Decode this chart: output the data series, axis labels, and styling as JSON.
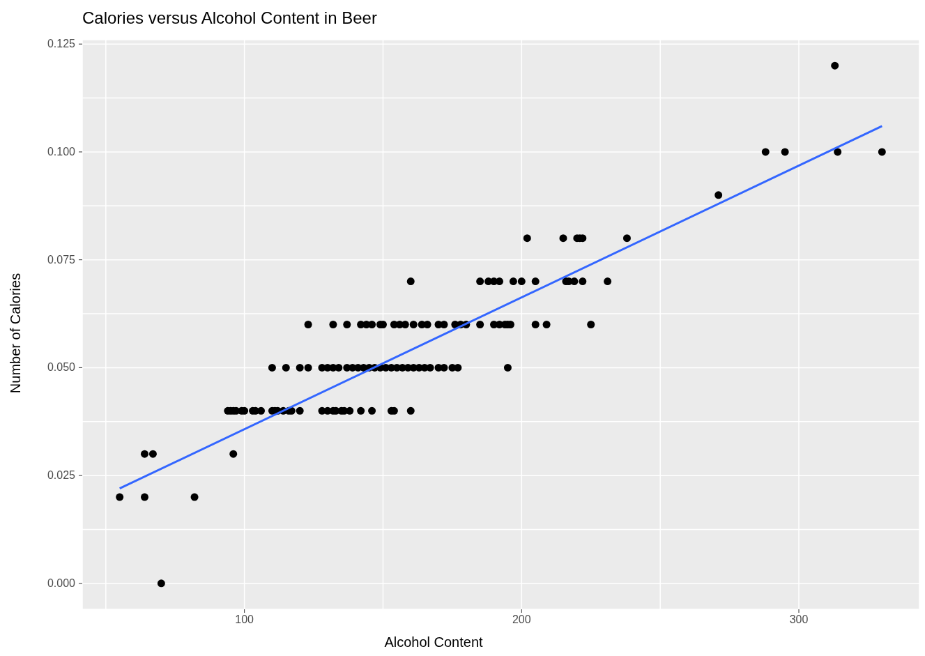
{
  "chart_data": {
    "type": "scatter",
    "title": "Calories versus Alcohol Content in Beer",
    "xlabel": "Alcohol Content",
    "ylabel": "Number of Calories",
    "xlim": [
      41.5,
      343.5
    ],
    "ylim": [
      -0.006,
      0.126
    ],
    "xticks": [
      {
        "value": 50,
        "label": null
      },
      100,
      {
        "value": 150,
        "label": null
      },
      200,
      {
        "value": 250,
        "label": null
      },
      300
    ],
    "yticks": [
      {
        "value": 0,
        "label": "0.000"
      },
      {
        "value": 0.0125,
        "label": null
      },
      {
        "value": 0.025,
        "label": "0.025"
      },
      {
        "value": 0.0375,
        "label": null
      },
      {
        "value": 0.05,
        "label": "0.050"
      },
      {
        "value": 0.0625,
        "label": null
      },
      {
        "value": 0.075,
        "label": "0.075"
      },
      {
        "value": 0.0875,
        "label": null
      },
      {
        "value": 0.1,
        "label": "0.100"
      },
      {
        "value": 0.1125,
        "label": null
      },
      {
        "value": 0.125,
        "label": "0.125"
      }
    ],
    "grid": true,
    "marker": "circle",
    "series": [
      {
        "color": "#000000",
        "x": [
          313,
          288,
          295,
          314,
          330,
          271,
          202,
          215,
          220,
          221,
          222,
          238,
          160,
          185,
          188,
          190,
          192,
          197,
          200,
          205,
          216,
          217,
          219,
          222,
          231,
          123,
          132,
          137,
          142,
          144,
          146,
          149,
          150,
          154,
          156,
          158,
          161,
          164,
          166,
          170,
          172,
          176,
          178,
          180,
          185,
          190,
          192,
          194,
          195,
          196,
          205,
          209,
          225,
          110,
          115,
          120,
          123,
          128,
          130,
          132,
          134,
          137,
          139,
          141,
          143,
          145,
          147,
          149,
          151,
          153,
          155,
          157,
          159,
          161,
          163,
          165,
          167,
          170,
          172,
          175,
          177,
          195,
          94,
          95,
          96,
          97,
          99,
          100,
          103,
          104,
          106,
          110,
          111,
          112,
          114,
          116,
          117,
          120,
          128,
          130,
          132,
          133,
          135,
          136,
          138,
          142,
          146,
          153,
          154,
          160,
          64,
          67,
          96,
          55,
          64,
          82,
          70
        ],
        "values": [
          0.12,
          0.1,
          0.1,
          0.1,
          0.1,
          0.09,
          0.08,
          0.08,
          0.08,
          0.08,
          0.08,
          0.08,
          0.07,
          0.07,
          0.07,
          0.07,
          0.07,
          0.07,
          0.07,
          0.07,
          0.07,
          0.07,
          0.07,
          0.07,
          0.07,
          0.06,
          0.06,
          0.06,
          0.06,
          0.06,
          0.06,
          0.06,
          0.06,
          0.06,
          0.06,
          0.06,
          0.06,
          0.06,
          0.06,
          0.06,
          0.06,
          0.06,
          0.06,
          0.06,
          0.06,
          0.06,
          0.06,
          0.06,
          0.06,
          0.06,
          0.06,
          0.06,
          0.06,
          0.05,
          0.05,
          0.05,
          0.05,
          0.05,
          0.05,
          0.05,
          0.05,
          0.05,
          0.05,
          0.05,
          0.05,
          0.05,
          0.05,
          0.05,
          0.05,
          0.05,
          0.05,
          0.05,
          0.05,
          0.05,
          0.05,
          0.05,
          0.05,
          0.05,
          0.05,
          0.05,
          0.05,
          0.05,
          0.04,
          0.04,
          0.04,
          0.04,
          0.04,
          0.04,
          0.04,
          0.04,
          0.04,
          0.04,
          0.04,
          0.04,
          0.04,
          0.04,
          0.04,
          0.04,
          0.04,
          0.04,
          0.04,
          0.04,
          0.04,
          0.04,
          0.04,
          0.04,
          0.04,
          0.04,
          0.04,
          0.04,
          0.03,
          0.03,
          0.03,
          0.02,
          0.02,
          0.02,
          0
        ]
      },
      {
        "type": "line",
        "color": "#3366ff",
        "marker": "none",
        "line_style": "solid",
        "x": [
          55,
          330
        ],
        "values": [
          0.022,
          0.106
        ]
      }
    ]
  }
}
